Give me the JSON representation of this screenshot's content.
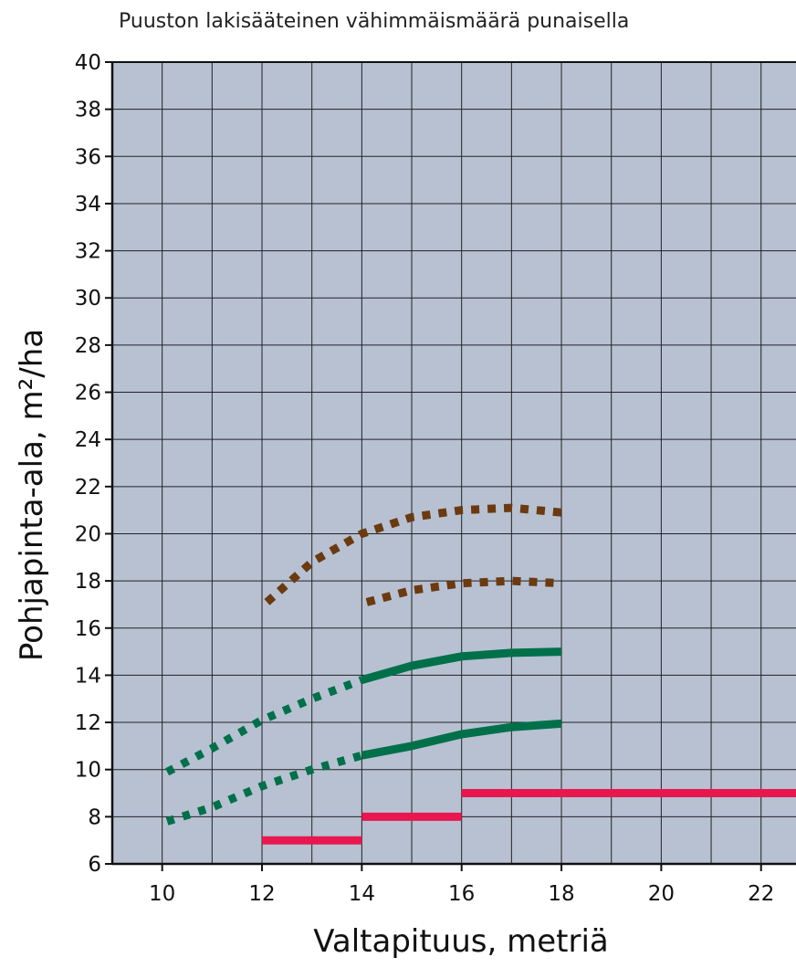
{
  "chart_data": {
    "type": "line",
    "title": "Puuston lakisääteinen vähimmäismäärä punaisella",
    "xlabel": "Valtapituus, metriä",
    "ylabel": "Pohjapinta-ala, m²/ha",
    "xlim": [
      9,
      22.7
    ],
    "ylim": [
      6,
      40
    ],
    "x_ticks": [
      10,
      12,
      14,
      16,
      18,
      20,
      22
    ],
    "y_ticks": [
      6,
      8,
      10,
      12,
      14,
      16,
      18,
      20,
      22,
      24,
      26,
      28,
      30,
      32,
      34,
      36,
      38,
      40
    ],
    "grid": true,
    "background_color": "#b7c1d2",
    "series": [
      {
        "style": "dotted",
        "color": "#6b3a10",
        "points": [
          [
            12.1,
            17.1
          ],
          [
            13,
            18.8
          ],
          [
            14,
            20.0
          ],
          [
            15,
            20.7
          ],
          [
            16,
            21.0
          ],
          [
            17,
            21.1
          ],
          [
            18,
            20.9
          ]
        ]
      },
      {
        "style": "dotted",
        "color": "#6b3a10",
        "points": [
          [
            14.1,
            17.1
          ],
          [
            15,
            17.6
          ],
          [
            16,
            17.9
          ],
          [
            17,
            18.0
          ],
          [
            18,
            17.9
          ]
        ]
      },
      {
        "style": "dotted",
        "color": "#00704a",
        "points": [
          [
            10.1,
            9.9
          ],
          [
            11,
            10.9
          ],
          [
            12,
            12.1
          ],
          [
            13,
            13.0
          ],
          [
            14,
            13.8
          ]
        ]
      },
      {
        "style": "solid",
        "color": "#00704a",
        "points": [
          [
            14,
            13.8
          ],
          [
            15,
            14.4
          ],
          [
            16,
            14.8
          ],
          [
            17,
            14.95
          ],
          [
            18,
            15.0
          ]
        ]
      },
      {
        "style": "dotted",
        "color": "#00704a",
        "points": [
          [
            10.1,
            7.8
          ],
          [
            11,
            8.4
          ],
          [
            12,
            9.3
          ],
          [
            13,
            10.0
          ],
          [
            14,
            10.6
          ]
        ]
      },
      {
        "style": "solid",
        "color": "#00704a",
        "points": [
          [
            14,
            10.6
          ],
          [
            15,
            11.0
          ],
          [
            16,
            11.5
          ],
          [
            17,
            11.8
          ],
          [
            18,
            11.95
          ]
        ]
      },
      {
        "style": "solid",
        "color": "#e8174f",
        "points": [
          [
            12,
            7.0
          ],
          [
            14,
            7.0
          ]
        ]
      },
      {
        "style": "solid",
        "color": "#e8174f",
        "points": [
          [
            14,
            8.0
          ],
          [
            16,
            8.0
          ]
        ]
      },
      {
        "style": "solid",
        "color": "#e8174f",
        "points": [
          [
            16,
            9.0
          ],
          [
            22.7,
            9.0
          ]
        ]
      }
    ]
  }
}
